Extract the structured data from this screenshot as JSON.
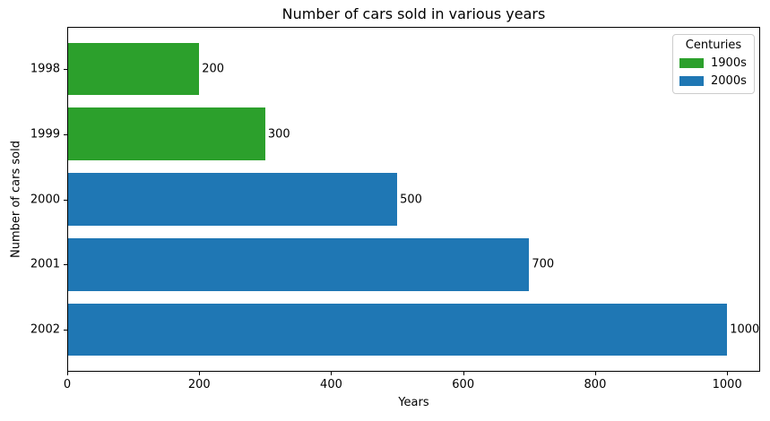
{
  "chart_data": {
    "type": "bar",
    "orientation": "horizontal",
    "title": "Number of cars sold in various years",
    "xlabel": "Years",
    "ylabel": "Number of cars sold",
    "categories": [
      "1998",
      "1999",
      "2000",
      "2001",
      "2002"
    ],
    "values": [
      200,
      300,
      500,
      700,
      1000
    ],
    "bar_labels": [
      "200",
      "300",
      "500",
      "700",
      "1000"
    ],
    "bar_colors": [
      "#2ca02c",
      "#2ca02c",
      "#1f77b4",
      "#1f77b4",
      "#1f77b4"
    ],
    "series": [
      {
        "name": "1900s",
        "color": "#2ca02c",
        "categories": [
          "1998",
          "1999"
        ],
        "values": [
          200,
          300
        ]
      },
      {
        "name": "2000s",
        "color": "#1f77b4",
        "categories": [
          "2000",
          "2001",
          "2002"
        ],
        "values": [
          500,
          700,
          1000
        ]
      }
    ],
    "xlim": [
      0,
      1050
    ],
    "xticks": [
      "0",
      "200",
      "400",
      "600",
      "800",
      "1000"
    ],
    "grid": false,
    "legend": {
      "title": "Centuries",
      "position": "upper right",
      "entries": [
        {
          "label": "1900s",
          "color": "#2ca02c"
        },
        {
          "label": "2000s",
          "color": "#1f77b4"
        }
      ]
    }
  }
}
